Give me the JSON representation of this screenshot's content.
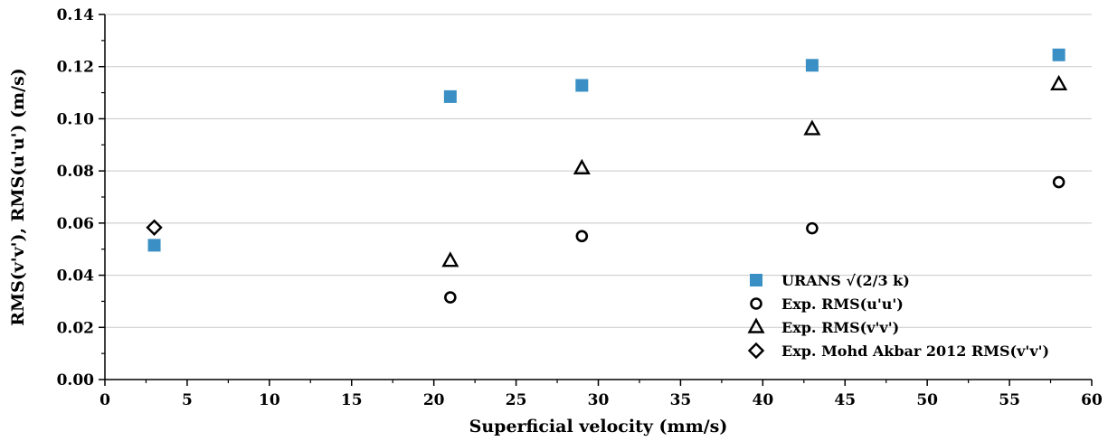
{
  "chart_data": {
    "type": "scatter",
    "title": "",
    "xlabel": "Superficial velocity (mm/s)",
    "ylabel": "RMS(v'v'), RMS(u'u') (m/s)",
    "xlim": [
      0,
      60
    ],
    "ylim": [
      0,
      0.14
    ],
    "x_ticks": [
      "0",
      "5",
      "10",
      "15",
      "20",
      "25",
      "30",
      "35",
      "40",
      "45",
      "50",
      "55",
      "60"
    ],
    "y_ticks": [
      "0.00",
      "0.02",
      "0.04",
      "0.06",
      "0.08",
      "0.10",
      "0.12",
      "0.14"
    ],
    "grid": "horizontal",
    "legend_position": "bottom-right",
    "series": [
      {
        "name": "URANS  √(2/3 k)",
        "marker": "filled-square",
        "color": "#3a8fc4",
        "points": [
          [
            3,
            0.0515
          ],
          [
            21,
            0.1085
          ],
          [
            29,
            0.1128
          ],
          [
            43,
            0.1205
          ],
          [
            58,
            0.1245
          ]
        ]
      },
      {
        "name": "Exp. RMS(u'u')",
        "marker": "open-circle",
        "color": "#000000",
        "points": [
          [
            21,
            0.0315
          ],
          [
            29,
            0.055
          ],
          [
            43,
            0.058
          ],
          [
            58,
            0.0757
          ]
        ]
      },
      {
        "name": "Exp. RMS(v'v')",
        "marker": "open-triangle",
        "color": "#000000",
        "points": [
          [
            21,
            0.0455
          ],
          [
            29,
            0.081
          ],
          [
            43,
            0.096
          ],
          [
            58,
            0.1132
          ]
        ]
      },
      {
        "name": "Exp. Mohd Akbar 2012 RMS(v'v')",
        "marker": "open-diamond",
        "color": "#000000",
        "points": [
          [
            3,
            0.0583
          ]
        ]
      }
    ]
  }
}
